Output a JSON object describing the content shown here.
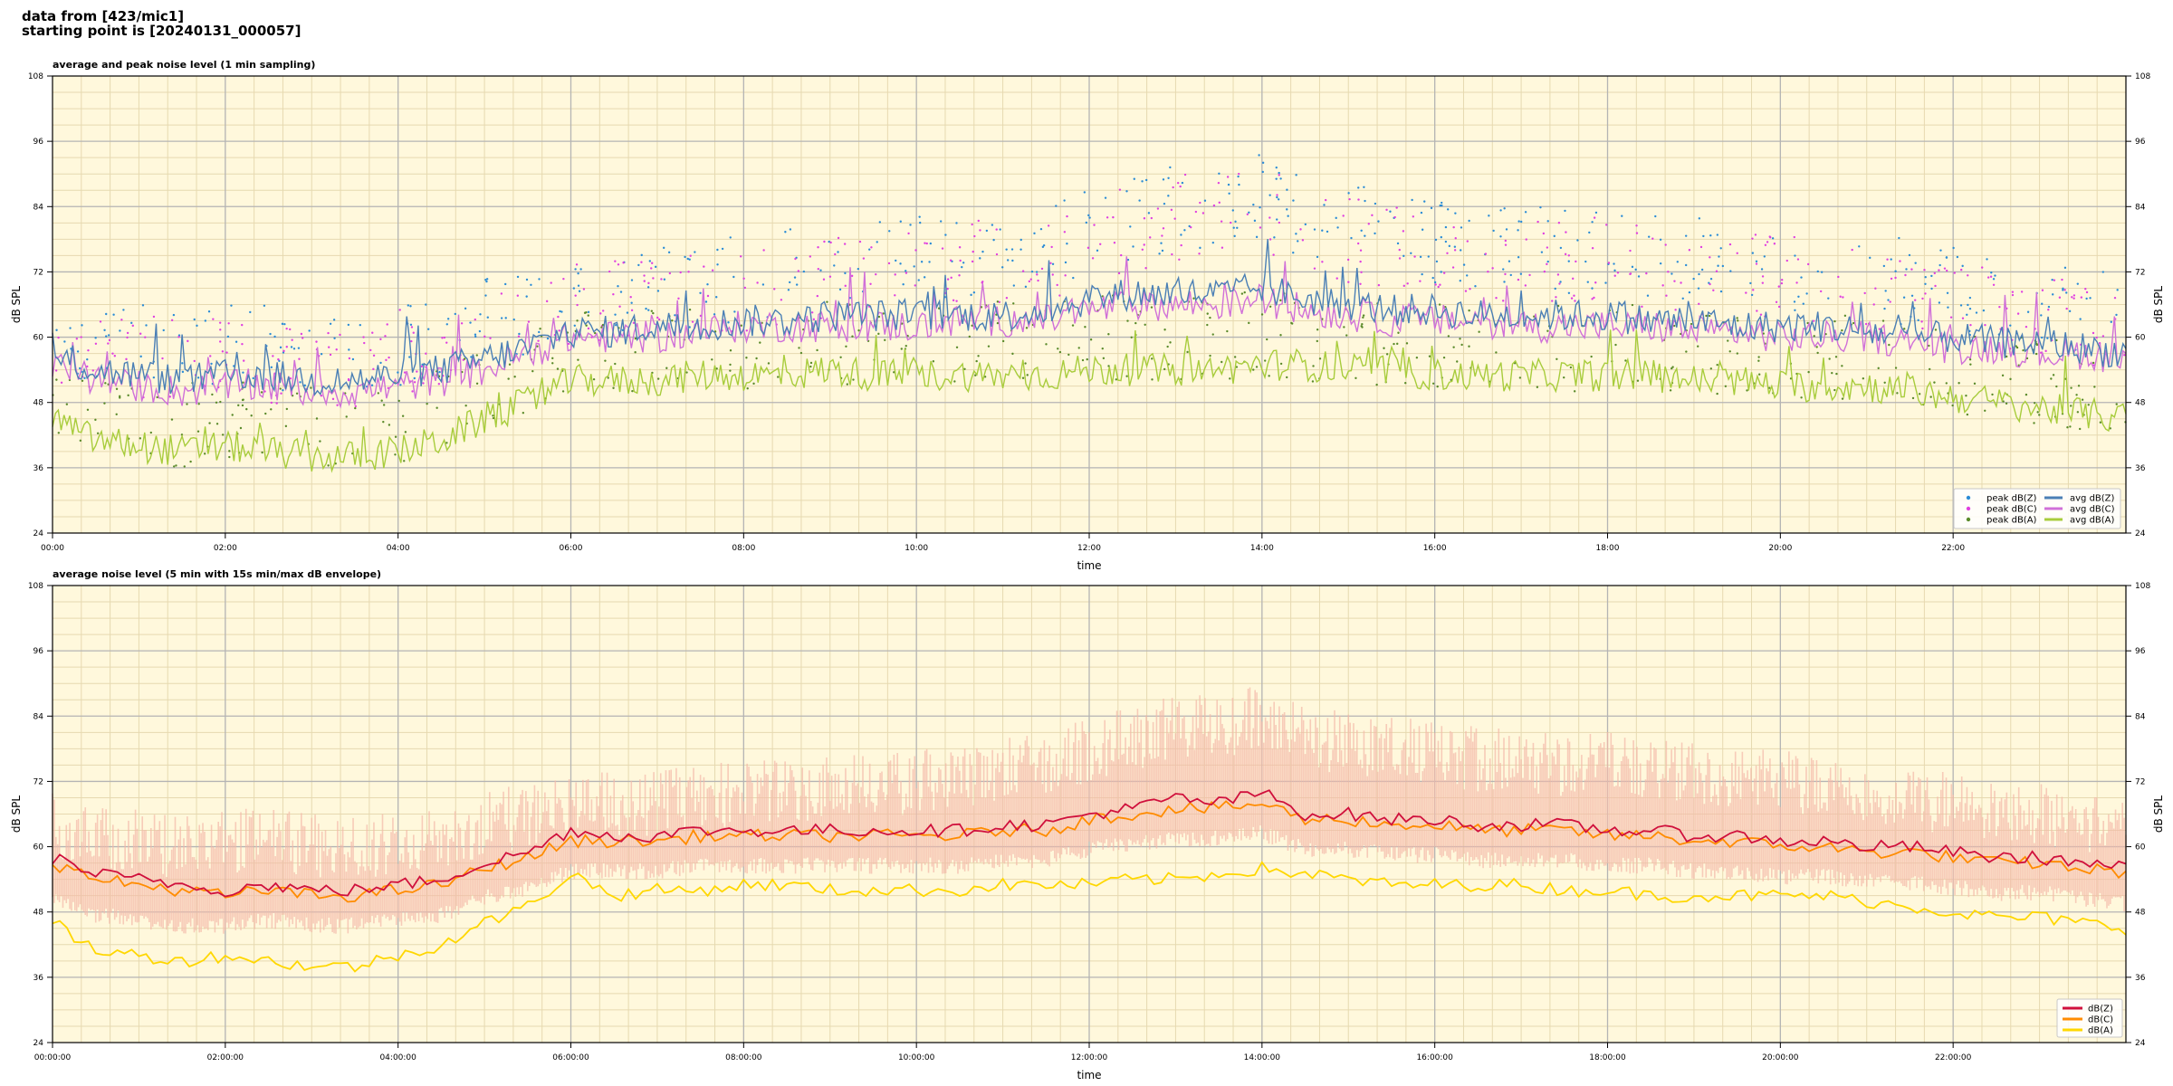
{
  "header": {
    "line1": "data from [423/mic1]",
    "line2": "starting point is [20240131_000057]"
  },
  "colors": {
    "background": "#fff8dc",
    "grid_major": "#b4b4b4",
    "grid_minor": "#e6d9b0",
    "peak_z": "#2b8cd6",
    "peak_c": "#e040e0",
    "peak_a": "#5a8a2a",
    "avg_z": "#4a7fb5",
    "avg_c": "#d070d8",
    "avg_a": "#a8cc3c",
    "env": "#f4b8a8",
    "dbz": "#d0103c",
    "dbc": "#ff8c00",
    "dba": "#ffd700"
  },
  "chart_data": [
    {
      "type": "line",
      "title": "average and peak noise level (1 min sampling)",
      "xlabel": "time",
      "ylabel": "dB SPL",
      "xlim_hours": [
        0,
        24
      ],
      "ylim": [
        24,
        108
      ],
      "yticks": [
        24,
        36,
        48,
        60,
        72,
        84,
        96,
        108
      ],
      "xtick_labels": [
        "00:00",
        "02:00",
        "04:00",
        "06:00",
        "08:00",
        "10:00",
        "12:00",
        "14:00",
        "16:00",
        "18:00",
        "20:00",
        "22:00"
      ],
      "grid": true,
      "legend_position": "bottom-right",
      "legend": [
        "peak dB(Z)",
        "peak dB(C)",
        "peak dB(A)",
        "avg dB(Z)",
        "avg dB(C)",
        "avg dB(A)"
      ],
      "x_hours": [
        0,
        0.5,
        1,
        1.5,
        2,
        2.5,
        3,
        3.5,
        4,
        4.5,
        5,
        5.5,
        6,
        6.5,
        7,
        7.5,
        8,
        8.5,
        9,
        9.5,
        10,
        10.5,
        11,
        11.5,
        12,
        12.5,
        13,
        13.5,
        14,
        14.5,
        15,
        15.5,
        16,
        16.5,
        17,
        17.5,
        18,
        18.5,
        19,
        19.5,
        20,
        20.5,
        21,
        21.5,
        22,
        22.5,
        23,
        23.5,
        24
      ],
      "series": [
        {
          "name": "avg dB(Z)",
          "values": [
            56,
            54,
            53,
            52,
            53,
            53,
            52,
            52,
            53,
            54,
            56,
            58,
            61,
            61,
            62,
            62,
            63,
            63,
            64,
            64,
            64,
            64,
            64,
            65,
            67,
            68,
            68,
            68,
            69,
            67,
            66,
            65,
            65,
            64,
            64,
            64,
            64,
            63,
            63,
            62,
            62,
            62,
            61,
            60,
            60,
            59,
            59,
            58,
            57
          ]
        },
        {
          "name": "avg dB(C)",
          "values": [
            55,
            52,
            51,
            50,
            51,
            51,
            50,
            50,
            51,
            52,
            54,
            57,
            60,
            60,
            60,
            61,
            62,
            62,
            62,
            62,
            62,
            63,
            63,
            63,
            65,
            66,
            66,
            66,
            67,
            65,
            64,
            63,
            63,
            63,
            62,
            62,
            62,
            62,
            61,
            61,
            60,
            60,
            60,
            59,
            58,
            58,
            57,
            57,
            56
          ]
        },
        {
          "name": "avg dB(A)",
          "values": [
            45,
            41,
            40,
            39,
            40,
            39,
            38,
            38,
            39,
            41,
            45,
            48,
            52,
            52,
            52,
            53,
            53,
            53,
            54,
            53,
            53,
            53,
            53,
            53,
            54,
            54,
            54,
            54,
            55,
            55,
            54,
            54,
            53,
            53,
            53,
            53,
            53,
            53,
            52,
            52,
            51,
            51,
            51,
            50,
            49,
            48,
            47,
            46,
            45
          ]
        }
      ],
      "peaks": {
        "z": [
          62,
          59,
          58,
          58,
          59,
          58,
          57,
          57,
          59,
          61,
          63,
          65,
          68,
          68,
          69,
          70,
          71,
          72,
          73,
          74,
          75,
          75,
          76,
          77,
          79,
          82,
          84,
          84,
          86,
          82,
          80,
          79,
          78,
          77,
          76,
          76,
          77,
          75,
          74,
          73,
          73,
          72,
          71,
          70,
          69,
          67,
          66,
          65,
          64
        ],
        "c": [
          60,
          57,
          56,
          56,
          57,
          56,
          55,
          55,
          57,
          59,
          61,
          63,
          66,
          66,
          67,
          68,
          69,
          70,
          71,
          72,
          73,
          73,
          74,
          75,
          77,
          80,
          82,
          82,
          84,
          80,
          78,
          77,
          76,
          75,
          74,
          74,
          75,
          73,
          72,
          71,
          71,
          70,
          69,
          68,
          67,
          65,
          64,
          63,
          62
        ],
        "a": [
          50,
          46,
          45,
          44,
          45,
          44,
          43,
          43,
          44,
          46,
          50,
          53,
          57,
          57,
          57,
          58,
          58,
          59,
          59,
          58,
          58,
          58,
          59,
          59,
          60,
          60,
          60,
          60,
          61,
          60,
          59,
          59,
          58,
          58,
          58,
          58,
          58,
          58,
          57,
          57,
          56,
          56,
          56,
          55,
          54,
          53,
          52,
          51,
          50
        ]
      }
    },
    {
      "type": "line",
      "title": "average noise level (5 min with 15s min/max dB envelope)",
      "xlabel": "time",
      "ylabel": "dB SPL",
      "xlim_hours": [
        0,
        24
      ],
      "ylim": [
        24,
        108
      ],
      "yticks": [
        24,
        36,
        48,
        60,
        72,
        84,
        96,
        108
      ],
      "xtick_labels": [
        "00:00:00",
        "02:00:00",
        "04:00:00",
        "06:00:00",
        "08:00:00",
        "10:00:00",
        "12:00:00",
        "14:00:00",
        "16:00:00",
        "18:00:00",
        "20:00:00",
        "22:00:00"
      ],
      "grid": true,
      "legend_position": "bottom-right",
      "legend": [
        "dB(Z)",
        "dB(C)",
        "dB(A)"
      ],
      "x_hours": [
        0,
        0.5,
        1,
        1.5,
        2,
        2.5,
        3,
        3.5,
        4,
        4.5,
        5,
        5.5,
        6,
        6.5,
        7,
        7.5,
        8,
        8.5,
        9,
        9.5,
        10,
        10.5,
        11,
        11.5,
        12,
        12.5,
        13,
        13.5,
        14,
        14.5,
        15,
        15.5,
        16,
        16.5,
        17,
        17.5,
        18,
        18.5,
        19,
        19.5,
        20,
        20.5,
        21,
        21.5,
        22,
        22.5,
        23,
        23.5,
        24
      ],
      "series": [
        {
          "name": "dB(Z)",
          "values": [
            58,
            55,
            54,
            53,
            52,
            53,
            52,
            52,
            53,
            54,
            57,
            59,
            63,
            62,
            62,
            63,
            63,
            63,
            63,
            63,
            63,
            63,
            64,
            64,
            66,
            67,
            69,
            68,
            70,
            66,
            66,
            65,
            65,
            64,
            64,
            64,
            63,
            63,
            62,
            62,
            61,
            61,
            60,
            60,
            59,
            58,
            58,
            57,
            56
          ]
        },
        {
          "name": "dB(C)",
          "values": [
            57,
            54,
            53,
            52,
            51,
            52,
            51,
            51,
            52,
            53,
            56,
            58,
            61,
            61,
            61,
            62,
            62,
            62,
            62,
            62,
            62,
            62,
            63,
            63,
            65,
            66,
            67,
            67,
            68,
            65,
            65,
            64,
            64,
            63,
            63,
            63,
            62,
            62,
            61,
            61,
            60,
            60,
            59,
            59,
            58,
            57,
            57,
            56,
            55
          ]
        },
        {
          "name": "dB(A)",
          "values": [
            46,
            41,
            40,
            39,
            40,
            39,
            38,
            38,
            40,
            42,
            46,
            49,
            55,
            51,
            52,
            52,
            53,
            53,
            52,
            52,
            52,
            52,
            53,
            53,
            53,
            54,
            54,
            55,
            56,
            55,
            54,
            53,
            53,
            53,
            53,
            52,
            52,
            51,
            51,
            51,
            51,
            51,
            50,
            49,
            48,
            47,
            47,
            46,
            45
          ]
        }
      ],
      "envelope_max": [
        70,
        68,
        67,
        66,
        67,
        67,
        66,
        66,
        67,
        68,
        70,
        72,
        74,
        74,
        74,
        75,
        76,
        76,
        77,
        77,
        78,
        79,
        80,
        81,
        84,
        86,
        88,
        88,
        90,
        86,
        85,
        84,
        83,
        82,
        82,
        81,
        82,
        80,
        79,
        78,
        78,
        77,
        76,
        75,
        74,
        73,
        72,
        71,
        70
      ],
      "envelope_min": [
        52,
        49,
        48,
        47,
        47,
        48,
        47,
        47,
        48,
        49,
        52,
        54,
        57,
        57,
        57,
        58,
        58,
        58,
        58,
        58,
        58,
        58,
        59,
        59,
        61,
        62,
        63,
        63,
        64,
        61,
        61,
        60,
        60,
        59,
        59,
        59,
        58,
        58,
        57,
        57,
        56,
        56,
        55,
        55,
        54,
        53,
        53,
        52,
        51
      ]
    }
  ]
}
